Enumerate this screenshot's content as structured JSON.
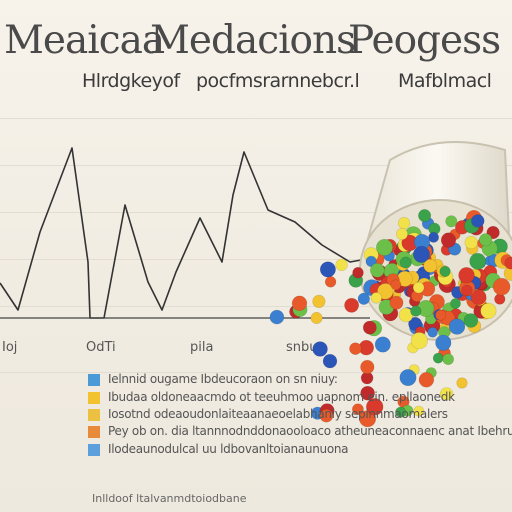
{
  "title_words": [
    "Meaicaa",
    "Medacions",
    "Peogess"
  ],
  "subtitle_parts": [
    "Hlrdgkeyof",
    "pocfmsrarnnebcr.l",
    "Mafblmacl"
  ],
  "x_labels": [
    "Ioj",
    "OdTi",
    "pila",
    "snbuc"
  ],
  "legend": [
    {
      "text": "Ielnnid ougame Ibdeucoraon on sn niuy:",
      "color": "#4a9ad8"
    },
    {
      "text": "Ibudaa oldoneaacmdo ot teeuhmoo uapnom ein. epllaonedk",
      "color": "#f2c230"
    },
    {
      "text": "Iosotnd odeaoudonlaiteaanaeoelabhaniy sepinnmaomalers",
      "color": "#ecc040"
    },
    {
      "text": "Pey  ob  on. dia  ltannnodnddonaooloaco  atheuneaconnaenc  anat Ibehrugia",
      "color": "#e88a3a"
    },
    {
      "text": "Ilodeaunodulcal  uu ldbovanltoianaunuona",
      "color": "#5b9fdc"
    }
  ],
  "footer": "Inlldoof ltalvanmdtoiodbane",
  "colors": {
    "pill_palette": [
      "#d93a2b",
      "#e85a2a",
      "#f2c230",
      "#3a7fd0",
      "#2c55b8",
      "#3aa24a",
      "#6cc04a",
      "#f3e14a",
      "#c02a2a"
    ]
  }
}
